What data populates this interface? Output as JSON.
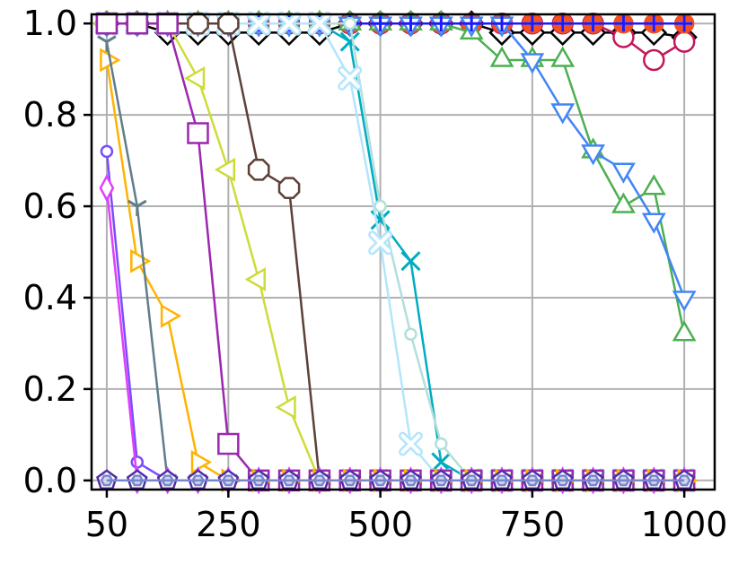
{
  "chart_data": {
    "type": "line",
    "title": "",
    "xlabel": "",
    "ylabel": "",
    "xlim": [
      25,
      1050
    ],
    "ylim": [
      -0.02,
      1.02
    ],
    "x_ticks": [
      50,
      250,
      500,
      750,
      1000
    ],
    "x_tick_labels": [
      "50",
      "250",
      "500",
      "750",
      "1000"
    ],
    "y_ticks": [
      0.0,
      0.2,
      0.4,
      0.6,
      0.8,
      1.0
    ],
    "y_tick_labels": [
      "0.0",
      "0.2",
      "0.4",
      "0.6",
      "0.8",
      "1.0"
    ],
    "grid": true,
    "legend": "none",
    "x": [
      50,
      100,
      150,
      200,
      250,
      300,
      350,
      400,
      450,
      500,
      550,
      600,
      650,
      700,
      750,
      800,
      850,
      900,
      950,
      1000
    ],
    "series": [
      {
        "color": "#000000",
        "marker": "diamond",
        "values": [
          1,
          1,
          0.98,
          0.98,
          0.98,
          0.98,
          0.98,
          0.98,
          1,
          1,
          1,
          1,
          1,
          0.98,
          0.98,
          0.98,
          0.98,
          0.98,
          0.98,
          0.97
        ]
      },
      {
        "color": "#c2185b",
        "marker": "circle-open",
        "values": [
          1,
          1,
          1,
          1,
          1,
          1,
          1,
          1,
          1,
          1,
          1,
          1,
          1,
          1,
          1,
          1,
          1,
          0.97,
          0.92,
          0.96
        ]
      },
      {
        "color": "#f4511e",
        "marker": "plus-circle",
        "values": [
          1,
          1,
          1,
          1,
          1,
          1,
          1,
          1,
          1,
          1,
          1,
          1,
          1,
          1,
          1,
          1,
          1,
          1,
          1,
          1
        ]
      },
      {
        "color": "#4caf50",
        "marker": "triangle-up",
        "values": [
          1,
          1,
          1,
          1,
          1,
          1,
          1,
          1,
          1,
          1,
          1,
          1,
          0.98,
          0.92,
          0.92,
          0.92,
          0.72,
          0.6,
          0.64,
          0.32
        ]
      },
      {
        "color": "#4285f4",
        "marker": "triangle-down",
        "values": [
          1,
          1,
          1,
          1,
          1,
          1,
          1,
          1,
          1,
          1,
          1,
          1,
          1,
          1,
          0.92,
          0.81,
          0.72,
          0.68,
          0.57,
          0.4
        ]
      },
      {
        "color": "#1a1aff",
        "marker": "plus",
        "values": [
          1,
          1,
          1,
          1,
          1,
          1,
          1,
          1,
          1,
          1,
          1,
          1,
          1,
          1,
          1,
          1,
          1,
          1,
          1,
          1
        ]
      },
      {
        "color": "#00acc1",
        "marker": "x",
        "values": [
          1,
          1,
          1,
          1,
          1,
          1,
          1,
          1,
          0.96,
          0.57,
          0.48,
          0.04,
          0,
          0,
          0,
          0,
          0,
          0,
          0,
          0
        ]
      },
      {
        "color": "#b2dfdb",
        "marker": "circle-small",
        "values": [
          1,
          1,
          1,
          1,
          1,
          1,
          1,
          1,
          1,
          0.6,
          0.32,
          0.08,
          0,
          0,
          0,
          0,
          0,
          0,
          0,
          0
        ]
      },
      {
        "color": "#b3e5fc",
        "marker": "x-thick",
        "values": [
          1,
          1,
          1,
          1,
          1,
          1,
          1,
          1,
          0.88,
          0.52,
          0.08,
          0,
          0,
          0,
          0,
          0,
          0,
          0,
          0,
          0
        ]
      },
      {
        "color": "#5d4037",
        "marker": "octagon",
        "values": [
          1,
          1,
          1,
          1,
          1,
          0.68,
          0.64,
          0,
          0,
          0,
          0,
          0,
          0,
          0,
          0,
          0,
          0,
          0,
          0,
          0
        ]
      },
      {
        "color": "#cddc39",
        "marker": "triangle-left",
        "values": [
          1,
          1,
          1,
          0.88,
          0.68,
          0.44,
          0.16,
          0,
          0,
          0,
          0,
          0,
          0,
          0,
          0,
          0,
          0,
          0,
          0,
          0
        ]
      },
      {
        "color": "#9c27b0",
        "marker": "square",
        "values": [
          1,
          1,
          1,
          0.76,
          0.08,
          0,
          0,
          0,
          0,
          0,
          0,
          0,
          0,
          0,
          0,
          0,
          0,
          0,
          0,
          0
        ]
      },
      {
        "color": "#ffb300",
        "marker": "triangle-right",
        "values": [
          0.92,
          0.48,
          0.36,
          0.04,
          0,
          0,
          0,
          0,
          0,
          0,
          0,
          0,
          0,
          0,
          0,
          0,
          0,
          0,
          0,
          0
        ]
      },
      {
        "color": "#607d8b",
        "marker": "tri-down",
        "values": [
          0.96,
          0.6,
          0,
          0,
          0,
          0,
          0,
          0,
          0,
          0,
          0,
          0,
          0,
          0,
          0,
          0,
          0,
          0,
          0,
          0
        ]
      },
      {
        "color": "#7c4dff",
        "marker": "circle-small",
        "values": [
          0.72,
          0.04,
          0,
          0,
          0,
          0,
          0,
          0,
          0,
          0,
          0,
          0,
          0,
          0,
          0,
          0,
          0,
          0,
          0,
          0
        ]
      },
      {
        "color": "#e040fb",
        "marker": "thin-diamond",
        "values": [
          0.64,
          0,
          0,
          0,
          0,
          0,
          0,
          0,
          0,
          0,
          0,
          0,
          0,
          0,
          0,
          0,
          0,
          0,
          0,
          0
        ]
      },
      {
        "color": "#512da8",
        "marker": "pentagon",
        "values": [
          0,
          0,
          0,
          0,
          0,
          0,
          0,
          0,
          0,
          0,
          0,
          0,
          0,
          0,
          0,
          0,
          0,
          0,
          0,
          0
        ]
      },
      {
        "color": "#7986cb",
        "marker": "hexagon",
        "values": [
          0,
          0,
          0,
          0,
          0,
          0,
          0,
          0,
          0,
          0,
          0,
          0,
          0,
          0,
          0,
          0,
          0,
          0,
          0,
          0
        ]
      }
    ]
  }
}
